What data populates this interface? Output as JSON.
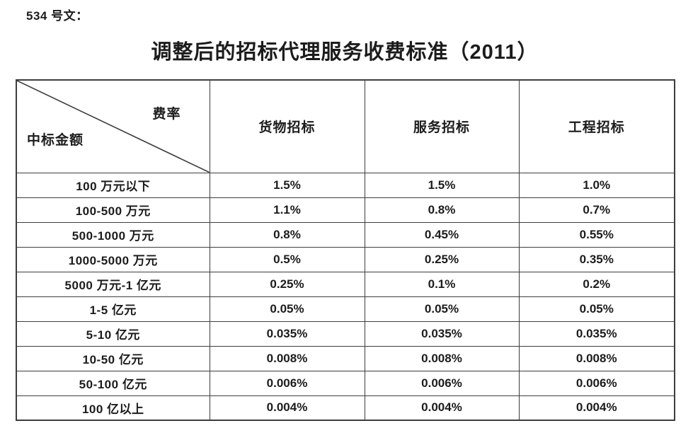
{
  "page": {
    "doc_label": "534 号文：",
    "title": "调整后的招标代理服务收费标准（2011）"
  },
  "table": {
    "corner": {
      "top_right": "费率",
      "bottom_left": "中标金额"
    },
    "columns": [
      "货物招标",
      "服务招标",
      "工程招标"
    ],
    "rows": [
      {
        "label": "100 万元以下",
        "values": [
          "1.5%",
          "1.5%",
          "1.0%"
        ]
      },
      {
        "label": "100-500 万元",
        "values": [
          "1.1%",
          "0.8%",
          "0.7%"
        ]
      },
      {
        "label": "500-1000 万元",
        "values": [
          "0.8%",
          "0.45%",
          "0.55%"
        ]
      },
      {
        "label": "1000-5000 万元",
        "values": [
          "0.5%",
          "0.25%",
          "0.35%"
        ]
      },
      {
        "label": "5000 万元-1 亿元",
        "values": [
          "0.25%",
          "0.1%",
          "0.2%"
        ]
      },
      {
        "label": "1-5 亿元",
        "values": [
          "0.05%",
          "0.05%",
          "0.05%"
        ]
      },
      {
        "label": "5-10 亿元",
        "values": [
          "0.035%",
          "0.035%",
          "0.035%"
        ]
      },
      {
        "label": "10-50 亿元",
        "values": [
          "0.008%",
          "0.008%",
          "0.008%"
        ]
      },
      {
        "label": "50-100 亿元",
        "values": [
          "0.006%",
          "0.006%",
          "0.006%"
        ]
      },
      {
        "label": "100 亿以上",
        "values": [
          "0.004%",
          "0.004%",
          "0.004%"
        ]
      }
    ]
  },
  "colors": {
    "text": "#1c1c1c",
    "border": "#3d3d3d",
    "background": "#ffffff"
  }
}
